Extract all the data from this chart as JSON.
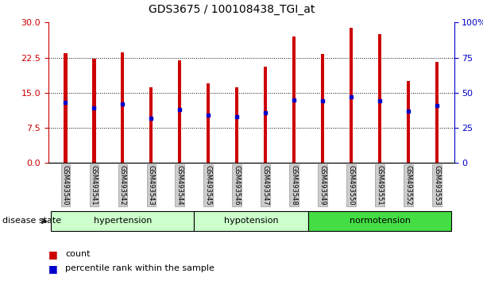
{
  "title": "GDS3675 / 100108438_TGI_at",
  "samples": [
    "GSM493540",
    "GSM493541",
    "GSM493542",
    "GSM493543",
    "GSM493544",
    "GSM493545",
    "GSM493546",
    "GSM493547",
    "GSM493548",
    "GSM493549",
    "GSM493550",
    "GSM493551",
    "GSM493552",
    "GSM493553"
  ],
  "count_values": [
    23.5,
    22.2,
    23.6,
    16.2,
    22.0,
    17.0,
    16.2,
    20.5,
    27.0,
    23.2,
    28.8,
    27.5,
    17.5,
    21.5
  ],
  "percentile_values": [
    43,
    39,
    42,
    32,
    38,
    34,
    33,
    36,
    45,
    44,
    47,
    44,
    37,
    41
  ],
  "ylim_left": [
    0,
    30
  ],
  "ylim_right": [
    0,
    100
  ],
  "yticks_left": [
    0,
    7.5,
    15,
    22.5,
    30
  ],
  "yticks_right": [
    0,
    25,
    50,
    75,
    100
  ],
  "bar_color": "#cc0000",
  "dot_color": "#0000cc",
  "bar_width": 0.12,
  "left_axis_color": "#cc0000",
  "right_axis_color": "#0000cc",
  "grid_color": "black",
  "tick_label_bg": "#cccccc",
  "disease_label": "disease state",
  "legend_count": "count",
  "legend_pct": "percentile rank within the sample",
  "group_defs": [
    [
      0,
      5,
      "hypertension",
      "#ccffcc"
    ],
    [
      5,
      9,
      "hypotension",
      "#ccffcc"
    ],
    [
      9,
      14,
      "normotension",
      "#44dd44"
    ]
  ]
}
